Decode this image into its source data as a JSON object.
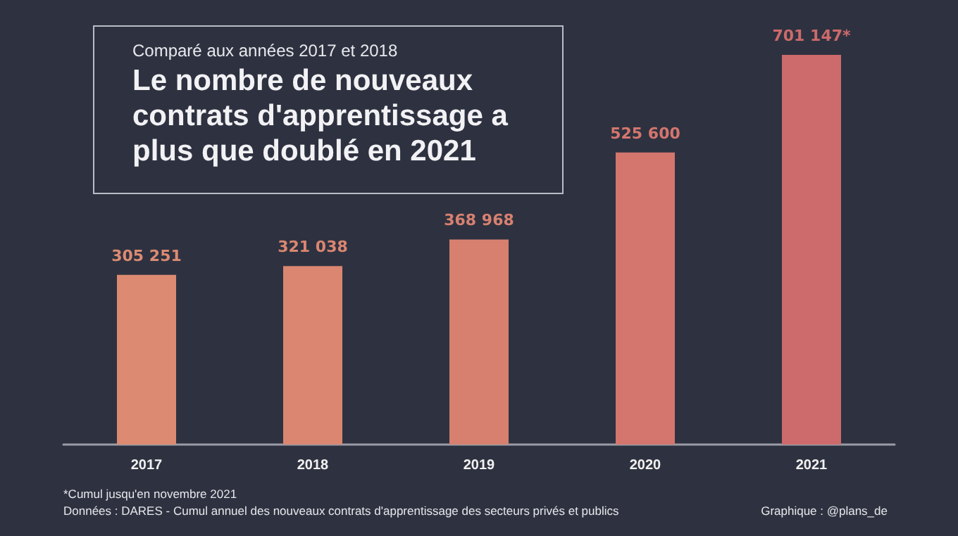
{
  "chart_data": {
    "type": "bar",
    "title": "Le nombre de nouveaux contrats d'apprentissage a plus que doublé en 2021",
    "subtitle": "Comparé aux années 2017 et 2018",
    "categories": [
      "2017",
      "2018",
      "2019",
      "2020",
      "2021"
    ],
    "values": [
      305251,
      321038,
      368968,
      525600,
      701147
    ],
    "colors": [
      "#dc8b72",
      "#da8671",
      "#d88070",
      "#d4766d",
      "#cd6a6b"
    ],
    "value_labels": [
      "305 251",
      "321 038",
      "368 968",
      "525 600",
      "701 147*"
    ],
    "annotations": [
      "*Cumul jusqu'en novembre 2021",
      "Données : DARES - Cumul annuel des nouveaux contrats d'apprentissage des secteurs privés et publics",
      "Graphique : @plans_de"
    ],
    "grid": false
  }
}
